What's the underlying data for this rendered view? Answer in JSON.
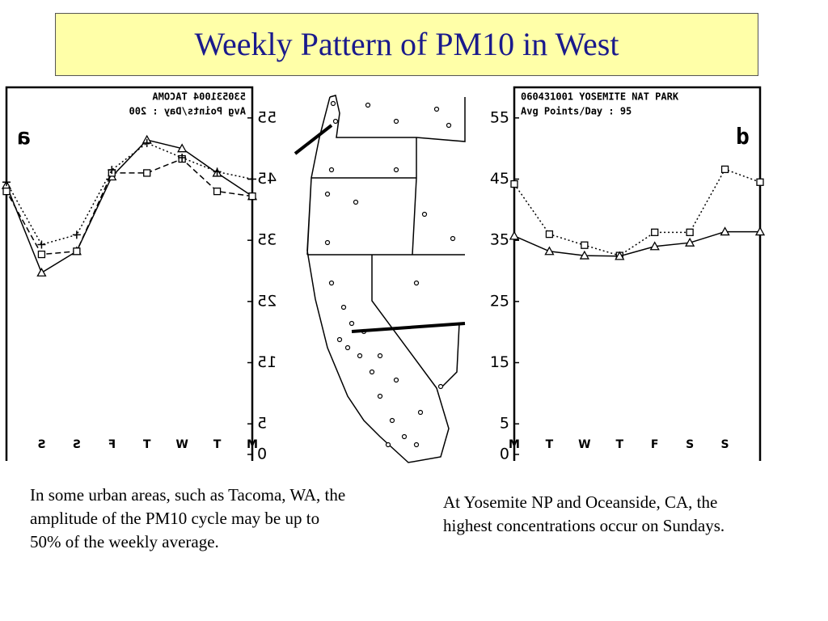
{
  "title": "Weekly Pattern of PM10 in West",
  "chart_data": [
    {
      "type": "line",
      "title": "530531004 TACOMA",
      "subtitle": "Avg Points/Day : 200",
      "panel_label": "a",
      "mirrored": true,
      "categories": [
        "M",
        "T",
        "W",
        "T",
        "F",
        "S",
        "S",
        null
      ],
      "ylim": [
        0,
        60
      ],
      "yticks": [
        0,
        5,
        15,
        25,
        35,
        45,
        55
      ],
      "grid": false,
      "series": [
        {
          "color": "#000000",
          "marker": "triangle",
          "dash": "solid",
          "values": [
            42.2,
            46,
            50,
            51.4,
            45.4,
            33.2,
            29.7,
            44
          ]
        },
        {
          "color": "#000000",
          "marker": "square",
          "dash": "dashed",
          "values": [
            42.2,
            43,
            48.3,
            46,
            46,
            33.2,
            32.7,
            43
          ]
        },
        {
          "color": "#000000",
          "marker": "plus",
          "dash": "dotted",
          "values": [
            45,
            46.2,
            48.5,
            50.9,
            46.5,
            35.9,
            34.3,
            44.5
          ]
        }
      ]
    },
    {
      "type": "line",
      "title": "060431001 YOSEMITE NAT PARK",
      "subtitle": "Avg Points/Day : 95",
      "panel_label": "b",
      "mirrored": false,
      "categories": [
        "M",
        "T",
        "W",
        "T",
        "F",
        "S",
        "S",
        null
      ],
      "ylim": [
        0,
        60
      ],
      "yticks": [
        0,
        5,
        15,
        25,
        35,
        45,
        55
      ],
      "grid": false,
      "series": [
        {
          "color": "#000000",
          "marker": "square",
          "dash": "dotted",
          "values": [
            44.2,
            36,
            34.2,
            32.5,
            36.3,
            36.3,
            46.6,
            44.5
          ]
        },
        {
          "color": "#000000",
          "marker": "triangle",
          "dash": "solid",
          "values": [
            35.7,
            33.2,
            32.5,
            32.4,
            34,
            34.6,
            36.4,
            36.4
          ]
        }
      ]
    }
  ],
  "captions": [
    "In some urban areas, such as Tacoma, WA, the amplitude of the PM10 cycle may be up to 50% of the weekly average.",
    "At Yosemite NP and Oceanside, CA, the highest concentrations occur on Sundays."
  ]
}
